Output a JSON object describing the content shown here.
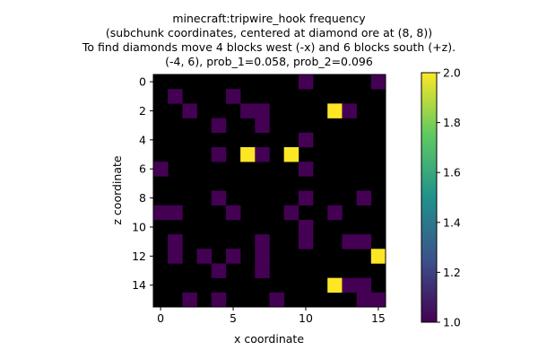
{
  "chart_data": {
    "type": "heatmap",
    "title_lines": [
      "minecraft:tripwire_hook frequency",
      "(subchunk coordinates, centered at diamond ore at (8, 8))",
      "To find diamonds move 4 blocks west (-x) and 6 blocks south (+z).",
      "(-4, 6), prob_1=0.058, prob_2=0.096"
    ],
    "xlabel": "x coordinate",
    "ylabel": "z coordinate",
    "x_ticks": [
      0,
      5,
      10,
      15
    ],
    "y_ticks": [
      0,
      2,
      4,
      6,
      8,
      10,
      12,
      14
    ],
    "grid_size": 16,
    "empty_color": "#000000",
    "colormap": "viridis",
    "colorbar": {
      "min": 1.0,
      "max": 2.0,
      "ticks": [
        "1.0",
        "1.2",
        "1.4",
        "1.6",
        "1.8",
        "2.0"
      ]
    },
    "cells": [
      {
        "x": 10,
        "z": 0,
        "v": 1
      },
      {
        "x": 15,
        "z": 0,
        "v": 1
      },
      {
        "x": 1,
        "z": 1,
        "v": 1
      },
      {
        "x": 5,
        "z": 1,
        "v": 1
      },
      {
        "x": 2,
        "z": 2,
        "v": 1
      },
      {
        "x": 6,
        "z": 2,
        "v": 1
      },
      {
        "x": 7,
        "z": 2,
        "v": 1
      },
      {
        "x": 12,
        "z": 2,
        "v": 2
      },
      {
        "x": 13,
        "z": 2,
        "v": 1
      },
      {
        "x": 4,
        "z": 3,
        "v": 1
      },
      {
        "x": 7,
        "z": 3,
        "v": 1
      },
      {
        "x": 10,
        "z": 4,
        "v": 1
      },
      {
        "x": 4,
        "z": 5,
        "v": 1
      },
      {
        "x": 6,
        "z": 5,
        "v": 2
      },
      {
        "x": 7,
        "z": 5,
        "v": 1
      },
      {
        "x": 9,
        "z": 5,
        "v": 2
      },
      {
        "x": 0,
        "z": 6,
        "v": 1
      },
      {
        "x": 10,
        "z": 6,
        "v": 1
      },
      {
        "x": 4,
        "z": 8,
        "v": 1
      },
      {
        "x": 10,
        "z": 8,
        "v": 1
      },
      {
        "x": 14,
        "z": 8,
        "v": 1
      },
      {
        "x": 0,
        "z": 9,
        "v": 1
      },
      {
        "x": 1,
        "z": 9,
        "v": 1
      },
      {
        "x": 5,
        "z": 9,
        "v": 1
      },
      {
        "x": 9,
        "z": 9,
        "v": 1
      },
      {
        "x": 12,
        "z": 9,
        "v": 1
      },
      {
        "x": 10,
        "z": 10,
        "v": 1
      },
      {
        "x": 1,
        "z": 11,
        "v": 1
      },
      {
        "x": 7,
        "z": 11,
        "v": 1
      },
      {
        "x": 10,
        "z": 11,
        "v": 1
      },
      {
        "x": 13,
        "z": 11,
        "v": 1
      },
      {
        "x": 14,
        "z": 11,
        "v": 1
      },
      {
        "x": 1,
        "z": 12,
        "v": 1
      },
      {
        "x": 3,
        "z": 12,
        "v": 1
      },
      {
        "x": 5,
        "z": 12,
        "v": 1
      },
      {
        "x": 7,
        "z": 12,
        "v": 1
      },
      {
        "x": 15,
        "z": 12,
        "v": 2
      },
      {
        "x": 4,
        "z": 13,
        "v": 1
      },
      {
        "x": 7,
        "z": 13,
        "v": 1
      },
      {
        "x": 12,
        "z": 14,
        "v": 2
      },
      {
        "x": 13,
        "z": 14,
        "v": 1
      },
      {
        "x": 14,
        "z": 14,
        "v": 1
      },
      {
        "x": 2,
        "z": 15,
        "v": 1
      },
      {
        "x": 4,
        "z": 15,
        "v": 1
      },
      {
        "x": 8,
        "z": 15,
        "v": 1
      },
      {
        "x": 14,
        "z": 15,
        "v": 1
      },
      {
        "x": 15,
        "z": 15,
        "v": 1
      }
    ]
  }
}
